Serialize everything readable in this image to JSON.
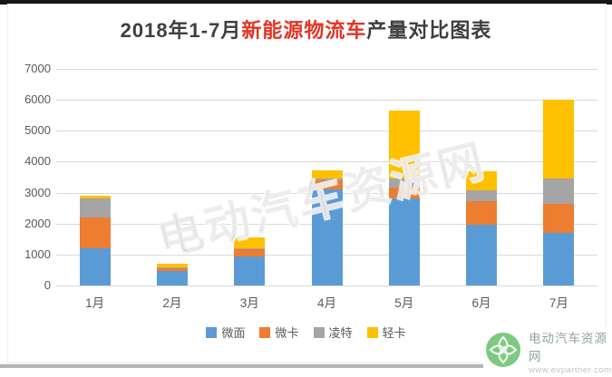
{
  "title": {
    "part1": "2018年1-7月",
    "part2": "新能源物流车",
    "part3": "产量对比图表"
  },
  "chart_data": {
    "type": "bar",
    "stacked": true,
    "title": "2018年1-7月新能源物流车产量对比图表",
    "categories": [
      "1月",
      "2月",
      "3月",
      "4月",
      "5月",
      "6月",
      "7月"
    ],
    "series": [
      {
        "name": "微面",
        "color": "#5B9BD5",
        "values": [
          1200,
          480,
          950,
          3100,
          2800,
          1950,
          1700
        ]
      },
      {
        "name": "微卡",
        "color": "#ED7D31",
        "values": [
          1000,
          70,
          220,
          300,
          350,
          760,
          950
        ]
      },
      {
        "name": "凌特",
        "color": "#A5A5A5",
        "values": [
          600,
          30,
          30,
          50,
          300,
          370,
          800
        ]
      },
      {
        "name": "轻卡",
        "color": "#FFC000",
        "values": [
          100,
          120,
          350,
          280,
          2200,
          620,
          2550
        ]
      }
    ],
    "totals": [
      2900,
      700,
      1550,
      3730,
      5650,
      3700,
      6000
    ],
    "ylim": [
      0,
      7000
    ],
    "ytick_step": 1000,
    "yticks": [
      "0",
      "1000",
      "2000",
      "3000",
      "4000",
      "5000",
      "6000",
      "7000"
    ],
    "grid": true,
    "legend_position": "bottom",
    "gridline_color": "#d9d9d9",
    "axis_text_color": "#595959"
  },
  "watermark": {
    "text": "电动汽车资源网"
  },
  "logo": {
    "name": "电动汽车资源网",
    "url": "www.evpartner.com",
    "icon_color": "#7ec982"
  }
}
